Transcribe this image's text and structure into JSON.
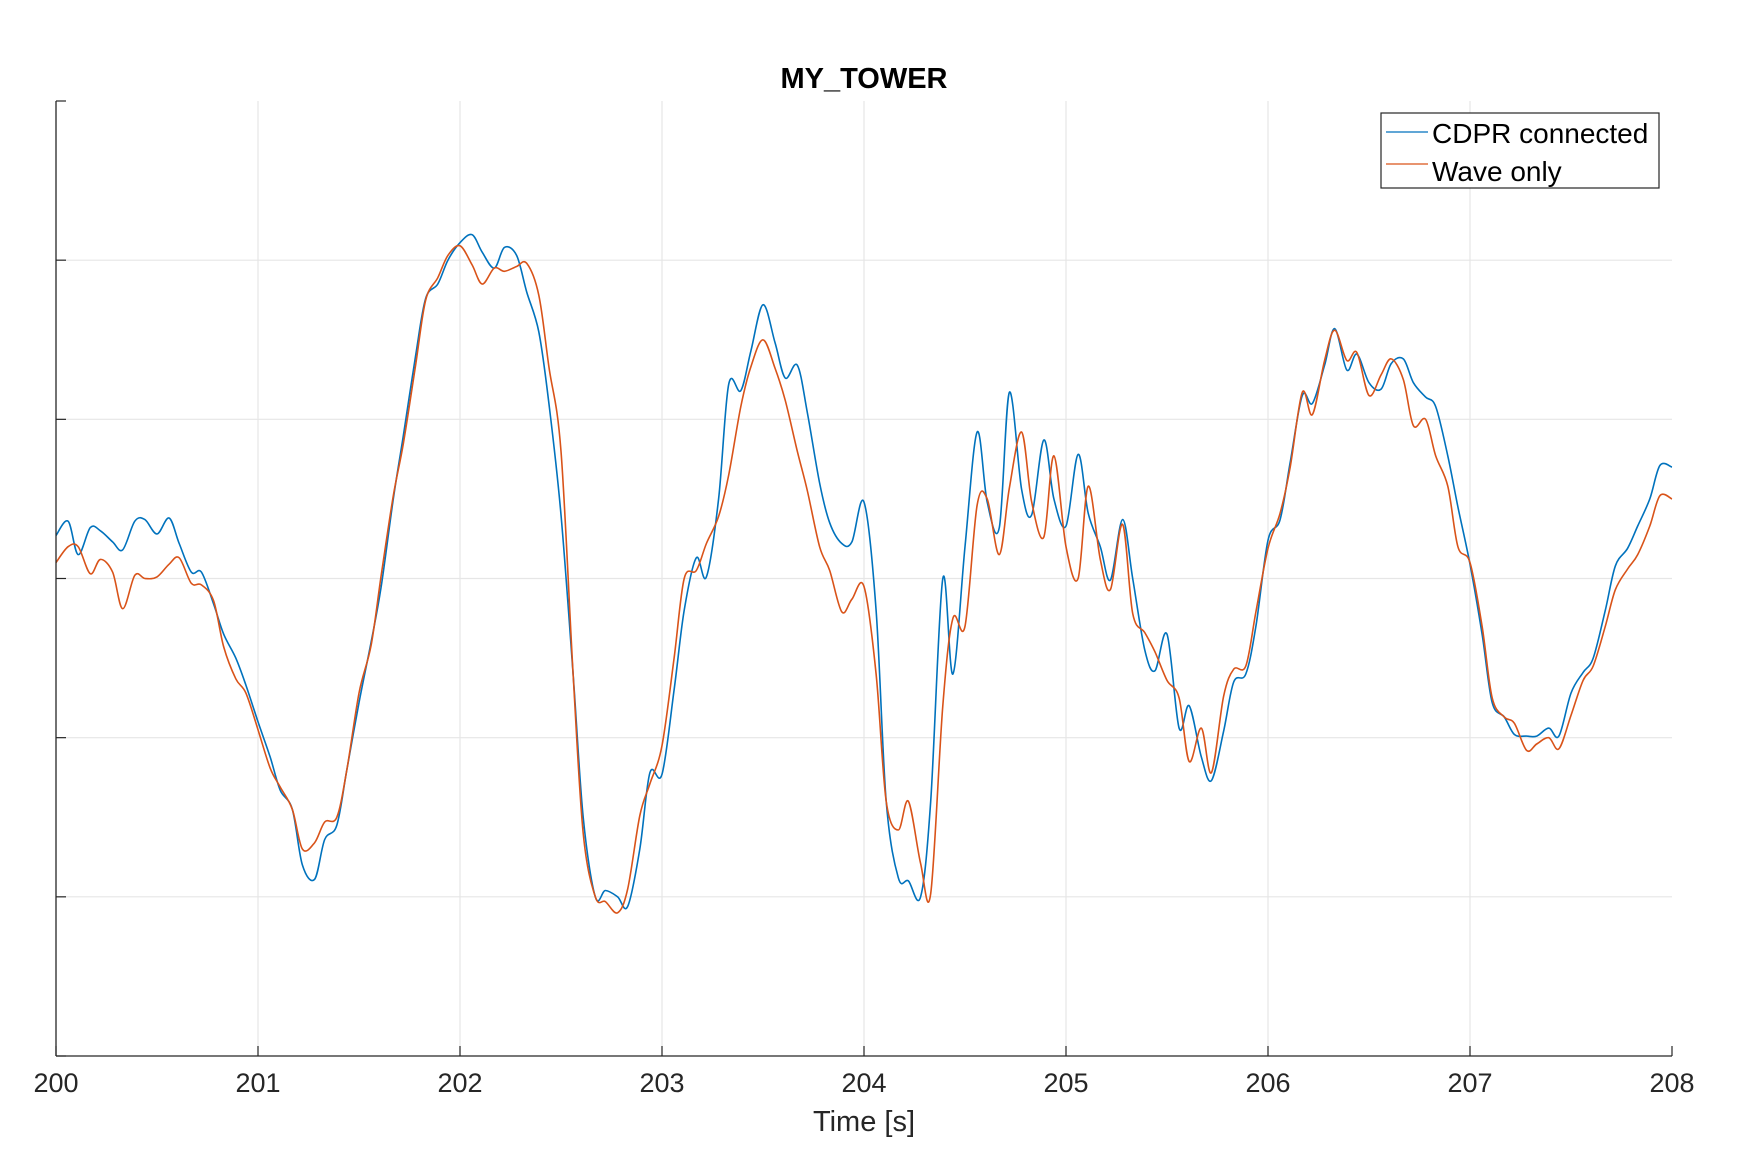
{
  "chart_data": {
    "type": "line",
    "title": "MY_TOWER",
    "xlabel": "Time [s]",
    "ylabel": "",
    "xlim": [
      200,
      208
    ],
    "ylim": [
      -3,
      3
    ],
    "xticks": [
      200,
      201,
      202,
      203,
      204,
      205,
      206,
      207,
      208
    ],
    "yticks": [
      -3,
      -2,
      -1,
      0,
      1,
      2,
      3
    ],
    "ytick_labels_visible": false,
    "grid": true,
    "legend_position": "top-right",
    "series": [
      {
        "name": "CDPR connected",
        "color": "#0072BD",
        "points": [
          [
            200.0,
            0.27
          ],
          [
            200.06,
            0.36
          ],
          [
            200.11,
            0.15
          ],
          [
            200.17,
            0.32
          ],
          [
            200.22,
            0.3
          ],
          [
            200.28,
            0.23
          ],
          [
            200.33,
            0.18
          ],
          [
            200.39,
            0.36
          ],
          [
            200.44,
            0.37
          ],
          [
            200.5,
            0.28
          ],
          [
            200.56,
            0.38
          ],
          [
            200.61,
            0.22
          ],
          [
            200.67,
            0.04
          ],
          [
            200.72,
            0.04
          ],
          [
            200.78,
            -0.16
          ],
          [
            200.83,
            -0.35
          ],
          [
            200.89,
            -0.5
          ],
          [
            200.94,
            -0.67
          ],
          [
            201.0,
            -0.9
          ],
          [
            201.06,
            -1.12
          ],
          [
            201.11,
            -1.33
          ],
          [
            201.17,
            -1.45
          ],
          [
            201.22,
            -1.8
          ],
          [
            201.28,
            -1.89
          ],
          [
            201.33,
            -1.64
          ],
          [
            201.39,
            -1.55
          ],
          [
            201.44,
            -1.2
          ],
          [
            201.5,
            -0.78
          ],
          [
            201.56,
            -0.4
          ],
          [
            201.61,
            -0.05
          ],
          [
            201.67,
            0.5
          ],
          [
            201.72,
            0.9
          ],
          [
            201.78,
            1.4
          ],
          [
            201.83,
            1.76
          ],
          [
            201.89,
            1.85
          ],
          [
            201.94,
            2.0
          ],
          [
            202.0,
            2.11
          ],
          [
            202.06,
            2.16
          ],
          [
            202.11,
            2.05
          ],
          [
            202.17,
            1.95
          ],
          [
            202.22,
            2.08
          ],
          [
            202.28,
            2.03
          ],
          [
            202.33,
            1.8
          ],
          [
            202.39,
            1.55
          ],
          [
            202.44,
            1.1
          ],
          [
            202.5,
            0.4
          ],
          [
            202.56,
            -0.6
          ],
          [
            202.61,
            -1.5
          ],
          [
            202.67,
            -2.0
          ],
          [
            202.72,
            -1.96
          ],
          [
            202.78,
            -2.0
          ],
          [
            202.83,
            -2.06
          ],
          [
            202.89,
            -1.7
          ],
          [
            202.94,
            -1.22
          ],
          [
            203.0,
            -1.23
          ],
          [
            203.06,
            -0.7
          ],
          [
            203.11,
            -0.2
          ],
          [
            203.17,
            0.13
          ],
          [
            203.22,
            0.01
          ],
          [
            203.28,
            0.5
          ],
          [
            203.33,
            1.22
          ],
          [
            203.39,
            1.18
          ],
          [
            203.44,
            1.43
          ],
          [
            203.5,
            1.72
          ],
          [
            203.56,
            1.48
          ],
          [
            203.61,
            1.26
          ],
          [
            203.67,
            1.34
          ],
          [
            203.72,
            1.04
          ],
          [
            203.78,
            0.6
          ],
          [
            203.83,
            0.35
          ],
          [
            203.89,
            0.22
          ],
          [
            203.94,
            0.23
          ],
          [
            204.0,
            0.48
          ],
          [
            204.06,
            -0.2
          ],
          [
            204.11,
            -1.4
          ],
          [
            204.17,
            -1.88
          ],
          [
            204.22,
            -1.9
          ],
          [
            204.28,
            -2.0
          ],
          [
            204.33,
            -1.4
          ],
          [
            204.39,
            0.0
          ],
          [
            204.44,
            -0.6
          ],
          [
            204.5,
            0.2
          ],
          [
            204.56,
            0.92
          ],
          [
            204.61,
            0.48
          ],
          [
            204.67,
            0.32
          ],
          [
            204.72,
            1.17
          ],
          [
            204.78,
            0.56
          ],
          [
            204.83,
            0.4
          ],
          [
            204.89,
            0.87
          ],
          [
            204.94,
            0.5
          ],
          [
            205.0,
            0.33
          ],
          [
            205.06,
            0.78
          ],
          [
            205.11,
            0.41
          ],
          [
            205.17,
            0.2
          ],
          [
            205.22,
            -0.01
          ],
          [
            205.28,
            0.37
          ],
          [
            205.33,
            0.0
          ],
          [
            205.39,
            -0.45
          ],
          [
            205.44,
            -0.58
          ],
          [
            205.5,
            -0.35
          ],
          [
            205.56,
            -0.94
          ],
          [
            205.61,
            -0.8
          ],
          [
            205.67,
            -1.12
          ],
          [
            205.72,
            -1.27
          ],
          [
            205.78,
            -0.96
          ],
          [
            205.83,
            -0.65
          ],
          [
            205.89,
            -0.6
          ],
          [
            205.94,
            -0.3
          ],
          [
            206.0,
            0.24
          ],
          [
            206.06,
            0.37
          ],
          [
            206.11,
            0.73
          ],
          [
            206.17,
            1.15
          ],
          [
            206.22,
            1.1
          ],
          [
            206.28,
            1.34
          ],
          [
            206.33,
            1.57
          ],
          [
            206.39,
            1.31
          ],
          [
            206.44,
            1.41
          ],
          [
            206.5,
            1.23
          ],
          [
            206.56,
            1.19
          ],
          [
            206.61,
            1.35
          ],
          [
            206.67,
            1.38
          ],
          [
            206.72,
            1.23
          ],
          [
            206.78,
            1.14
          ],
          [
            206.83,
            1.08
          ],
          [
            206.89,
            0.77
          ],
          [
            206.94,
            0.45
          ],
          [
            207.0,
            0.09
          ],
          [
            207.06,
            -0.35
          ],
          [
            207.11,
            -0.78
          ],
          [
            207.17,
            -0.87
          ],
          [
            207.22,
            -0.98
          ],
          [
            207.28,
            -0.99
          ],
          [
            207.33,
            -0.99
          ],
          [
            207.39,
            -0.94
          ],
          [
            207.44,
            -0.99
          ],
          [
            207.5,
            -0.72
          ],
          [
            207.56,
            -0.59
          ],
          [
            207.61,
            -0.5
          ],
          [
            207.67,
            -0.2
          ],
          [
            207.72,
            0.08
          ],
          [
            207.78,
            0.19
          ],
          [
            207.83,
            0.33
          ],
          [
            207.89,
            0.5
          ],
          [
            207.94,
            0.71
          ],
          [
            208.0,
            0.7
          ]
        ]
      },
      {
        "name": "Wave only",
        "color": "#D95319",
        "points": [
          [
            200.0,
            0.1
          ],
          [
            200.06,
            0.2
          ],
          [
            200.11,
            0.2
          ],
          [
            200.17,
            0.03
          ],
          [
            200.22,
            0.12
          ],
          [
            200.28,
            0.04
          ],
          [
            200.33,
            -0.19
          ],
          [
            200.39,
            0.02
          ],
          [
            200.44,
            0.0
          ],
          [
            200.5,
            0.01
          ],
          [
            200.56,
            0.09
          ],
          [
            200.61,
            0.13
          ],
          [
            200.67,
            -0.03
          ],
          [
            200.72,
            -0.04
          ],
          [
            200.78,
            -0.14
          ],
          [
            200.83,
            -0.43
          ],
          [
            200.89,
            -0.63
          ],
          [
            200.94,
            -0.72
          ],
          [
            201.0,
            -0.95
          ],
          [
            201.06,
            -1.19
          ],
          [
            201.11,
            -1.31
          ],
          [
            201.17,
            -1.45
          ],
          [
            201.22,
            -1.7
          ],
          [
            201.28,
            -1.66
          ],
          [
            201.33,
            -1.53
          ],
          [
            201.39,
            -1.5
          ],
          [
            201.44,
            -1.2
          ],
          [
            201.5,
            -0.72
          ],
          [
            201.56,
            -0.42
          ],
          [
            201.61,
            0.02
          ],
          [
            201.67,
            0.52
          ],
          [
            201.72,
            0.85
          ],
          [
            201.78,
            1.34
          ],
          [
            201.83,
            1.75
          ],
          [
            201.89,
            1.89
          ],
          [
            201.94,
            2.03
          ],
          [
            202.0,
            2.09
          ],
          [
            202.06,
            1.97
          ],
          [
            202.11,
            1.85
          ],
          [
            202.17,
            1.95
          ],
          [
            202.22,
            1.93
          ],
          [
            202.28,
            1.96
          ],
          [
            202.33,
            1.98
          ],
          [
            202.39,
            1.78
          ],
          [
            202.44,
            1.33
          ],
          [
            202.5,
            0.8
          ],
          [
            202.56,
            -0.6
          ],
          [
            202.61,
            -1.6
          ],
          [
            202.67,
            -2.0
          ],
          [
            202.72,
            -2.03
          ],
          [
            202.78,
            -2.1
          ],
          [
            202.83,
            -1.95
          ],
          [
            202.89,
            -1.49
          ],
          [
            202.94,
            -1.29
          ],
          [
            203.0,
            -1.05
          ],
          [
            203.06,
            -0.5
          ],
          [
            203.11,
            0.0
          ],
          [
            203.17,
            0.05
          ],
          [
            203.22,
            0.22
          ],
          [
            203.28,
            0.39
          ],
          [
            203.33,
            0.65
          ],
          [
            203.39,
            1.08
          ],
          [
            203.44,
            1.33
          ],
          [
            203.5,
            1.5
          ],
          [
            203.56,
            1.32
          ],
          [
            203.61,
            1.12
          ],
          [
            203.67,
            0.8
          ],
          [
            203.72,
            0.55
          ],
          [
            203.78,
            0.2
          ],
          [
            203.83,
            0.05
          ],
          [
            203.89,
            -0.21
          ],
          [
            203.94,
            -0.13
          ],
          [
            204.0,
            -0.05
          ],
          [
            204.06,
            -0.6
          ],
          [
            204.11,
            -1.4
          ],
          [
            204.17,
            -1.58
          ],
          [
            204.22,
            -1.4
          ],
          [
            204.28,
            -1.79
          ],
          [
            204.33,
            -1.98
          ],
          [
            204.39,
            -0.8
          ],
          [
            204.44,
            -0.25
          ],
          [
            204.5,
            -0.3
          ],
          [
            204.56,
            0.46
          ],
          [
            204.61,
            0.5
          ],
          [
            204.67,
            0.15
          ],
          [
            204.72,
            0.57
          ],
          [
            204.78,
            0.92
          ],
          [
            204.83,
            0.48
          ],
          [
            204.89,
            0.26
          ],
          [
            204.94,
            0.77
          ],
          [
            205.0,
            0.2
          ],
          [
            205.06,
            0.0
          ],
          [
            205.11,
            0.58
          ],
          [
            205.17,
            0.12
          ],
          [
            205.22,
            -0.07
          ],
          [
            205.28,
            0.34
          ],
          [
            205.33,
            -0.22
          ],
          [
            205.39,
            -0.34
          ],
          [
            205.44,
            -0.46
          ],
          [
            205.5,
            -0.64
          ],
          [
            205.56,
            -0.75
          ],
          [
            205.61,
            -1.15
          ],
          [
            205.67,
            -0.94
          ],
          [
            205.72,
            -1.22
          ],
          [
            205.78,
            -0.74
          ],
          [
            205.83,
            -0.57
          ],
          [
            205.89,
            -0.55
          ],
          [
            205.94,
            -0.21
          ],
          [
            206.0,
            0.19
          ],
          [
            206.06,
            0.41
          ],
          [
            206.11,
            0.7
          ],
          [
            206.17,
            1.17
          ],
          [
            206.22,
            1.03
          ],
          [
            206.28,
            1.37
          ],
          [
            206.33,
            1.56
          ],
          [
            206.39,
            1.37
          ],
          [
            206.44,
            1.42
          ],
          [
            206.5,
            1.15
          ],
          [
            206.56,
            1.28
          ],
          [
            206.61,
            1.38
          ],
          [
            206.67,
            1.25
          ],
          [
            206.72,
            0.96
          ],
          [
            206.78,
            1.0
          ],
          [
            206.83,
            0.77
          ],
          [
            206.89,
            0.58
          ],
          [
            206.94,
            0.2
          ],
          [
            207.0,
            0.1
          ],
          [
            207.06,
            -0.3
          ],
          [
            207.11,
            -0.75
          ],
          [
            207.17,
            -0.87
          ],
          [
            207.22,
            -0.91
          ],
          [
            207.28,
            -1.08
          ],
          [
            207.33,
            -1.04
          ],
          [
            207.39,
            -1.0
          ],
          [
            207.44,
            -1.07
          ],
          [
            207.5,
            -0.86
          ],
          [
            207.56,
            -0.64
          ],
          [
            207.61,
            -0.55
          ],
          [
            207.67,
            -0.3
          ],
          [
            207.72,
            -0.07
          ],
          [
            207.78,
            0.06
          ],
          [
            207.83,
            0.15
          ],
          [
            207.89,
            0.33
          ],
          [
            207.94,
            0.52
          ],
          [
            208.0,
            0.5
          ]
        ]
      }
    ]
  }
}
